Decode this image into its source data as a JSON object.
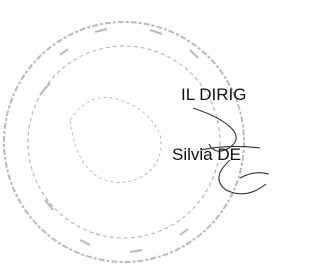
{
  "signature_block": {
    "title": "IL DIRIG",
    "name": "Silvia DE"
  }
}
